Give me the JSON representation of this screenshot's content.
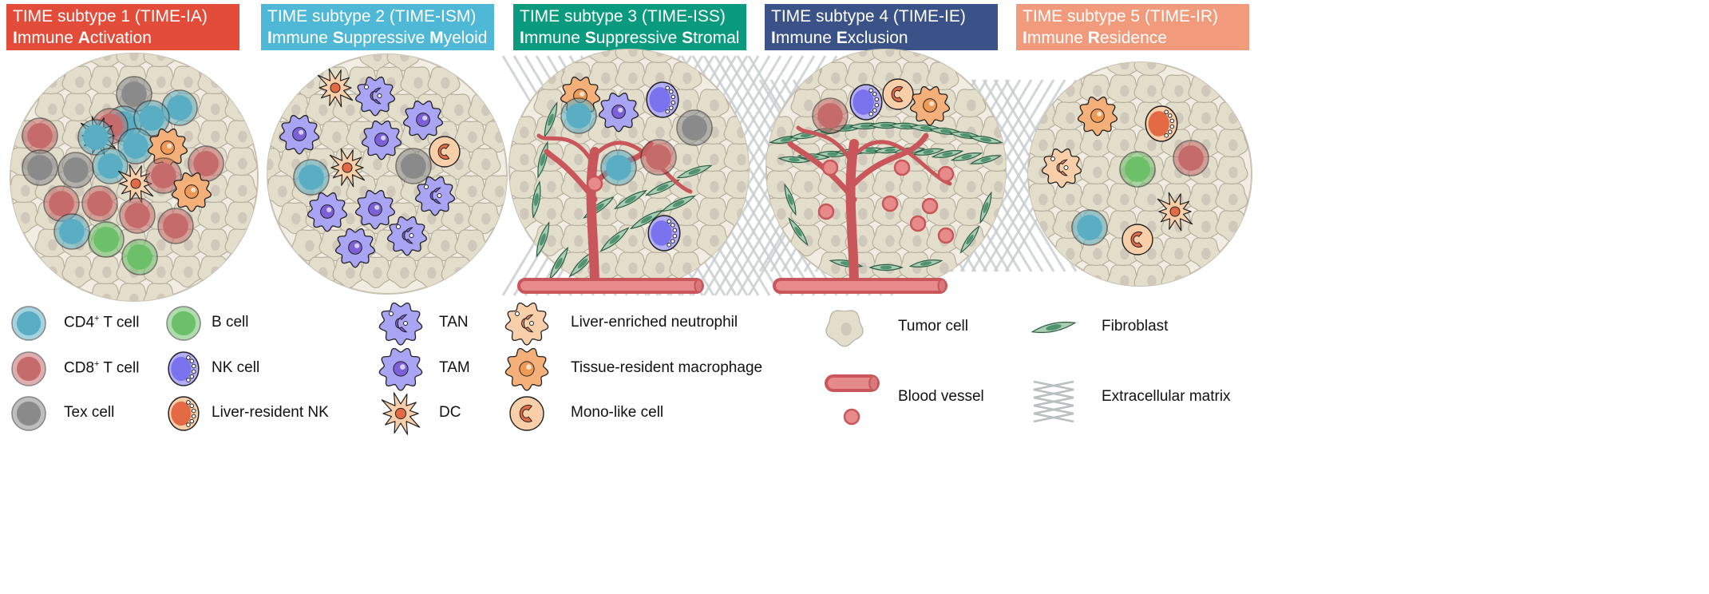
{
  "panels": [
    {
      "title": "TIME subtype 1 (TIME-IA)",
      "subtitle": [
        {
          "t": "I",
          "b": true
        },
        {
          "t": "mmune "
        },
        {
          "t": "A",
          "b": true
        },
        {
          "t": "ctivation"
        }
      ],
      "color": "#e44c3a"
    },
    {
      "title": "TIME subtype 2 (TIME-ISM)",
      "subtitle": [
        {
          "t": "I",
          "b": true
        },
        {
          "t": "mmune "
        },
        {
          "t": "S",
          "b": true
        },
        {
          "t": "uppressive "
        },
        {
          "t": "M",
          "b": true
        },
        {
          "t": "yeloid"
        }
      ],
      "color": "#4fb8d6"
    },
    {
      "title": "TIME subtype 3 (TIME-ISS)",
      "subtitle": [
        {
          "t": "I",
          "b": true
        },
        {
          "t": "mmune "
        },
        {
          "t": "S",
          "b": true
        },
        {
          "t": "uppressive "
        },
        {
          "t": "S",
          "b": true
        },
        {
          "t": "tromal"
        }
      ],
      "color": "#0a9a7e"
    },
    {
      "title": "TIME subtype 4 (TIME-IE)",
      "subtitle": [
        {
          "t": "I",
          "b": true
        },
        {
          "t": "mmune "
        },
        {
          "t": "E",
          "b": true
        },
        {
          "t": "xclusion"
        }
      ],
      "color": "#3a5287"
    },
    {
      "title": "TIME subtype 5 (TIME-IR)",
      "subtitle": [
        {
          "t": "I",
          "b": true
        },
        {
          "t": "mmune "
        },
        {
          "t": "R",
          "b": true
        },
        {
          "t": "esidence"
        }
      ],
      "color": "#f29b7c"
    }
  ],
  "legend": {
    "cd4": {
      "label": "CD4",
      "sup": "+",
      "rest": " T cell",
      "icon": "cd4-t-cell-icon"
    },
    "cd8": {
      "label": "CD8",
      "sup": "+",
      "rest": " T cell",
      "icon": "cd8-t-cell-icon"
    },
    "tex": {
      "label": "Tex cell",
      "icon": "tex-cell-icon"
    },
    "bcell": {
      "label": "B cell",
      "icon": "b-cell-icon"
    },
    "nk": {
      "label": "NK cell",
      "icon": "nk-cell-icon"
    },
    "lrnk": {
      "label": "Liver-resident NK",
      "icon": "liver-resident-nk-icon"
    },
    "tan": {
      "label": "TAN",
      "icon": "tan-icon"
    },
    "tam": {
      "label": "TAM",
      "icon": "tam-icon"
    },
    "dc": {
      "label": "DC",
      "icon": "dc-icon"
    },
    "len": {
      "label": "Liver-enriched neutrophil",
      "icon": "liver-enriched-neutrophil-icon"
    },
    "trm": {
      "label": "Tissue-resident macrophage",
      "icon": "tissue-resident-macrophage-icon"
    },
    "mono": {
      "label": "Mono-like cell",
      "icon": "mono-like-cell-icon"
    },
    "tumor": {
      "label": "Tumor cell",
      "icon": "tumor-cell-icon"
    },
    "vessel": {
      "label": "Blood vessel",
      "icon": "blood-vessel-icon"
    },
    "fibro": {
      "label": "Fibroblast",
      "icon": "fibroblast-icon"
    },
    "ecm": {
      "label": "Extracellular matrix",
      "icon": "extracellular-matrix-icon"
    }
  },
  "colors": {
    "cd4": "#5aaec4",
    "cd8": "#c56b6b",
    "tex": "#8a8a8a",
    "bcell": "#6cc06a",
    "nk": "#7b72ee",
    "lrnk": "#e46a45",
    "myeloid": "#a9a4f4",
    "orange": "#f5b07a",
    "tumor": "#e3ddcc",
    "vessel": "#c9565a",
    "fibro": "#4e9470",
    "ecm": "#c9cdcd"
  }
}
